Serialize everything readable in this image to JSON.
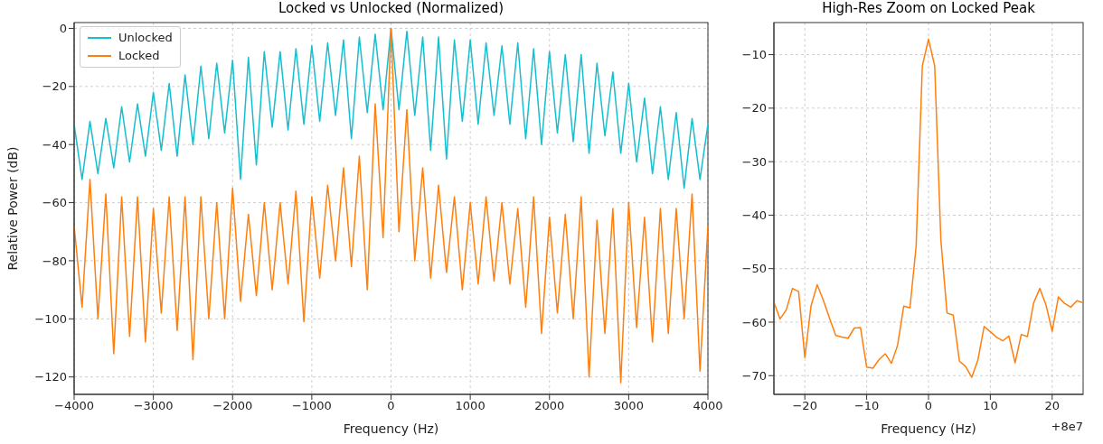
{
  "chart_data": [
    {
      "type": "line",
      "title": "Locked vs Unlocked (Normalized)",
      "xlabel": "Frequency (Hz)",
      "ylabel": "Relative Power (dB)",
      "x": [
        -4000,
        -3900,
        -3800,
        -3700,
        -3600,
        -3500,
        -3400,
        -3300,
        -3200,
        -3100,
        -3000,
        -2900,
        -2800,
        -2700,
        -2600,
        -2500,
        -2400,
        -2300,
        -2200,
        -2100,
        -2000,
        -1900,
        -1800,
        -1700,
        -1600,
        -1500,
        -1400,
        -1300,
        -1200,
        -1100,
        -1000,
        -900,
        -800,
        -700,
        -600,
        -500,
        -400,
        -300,
        -200,
        -100,
        0,
        100,
        200,
        300,
        400,
        500,
        600,
        700,
        800,
        900,
        1000,
        1100,
        1200,
        1300,
        1400,
        1500,
        1600,
        1700,
        1800,
        1900,
        2000,
        2100,
        2200,
        2300,
        2400,
        2500,
        2600,
        2700,
        2800,
        2900,
        3000,
        3100,
        3200,
        3300,
        3400,
        3500,
        3600,
        3700,
        3800,
        3900,
        4000
      ],
      "series": [
        {
          "name": "Unlocked",
          "color": "#17becf",
          "values": [
            -33,
            -52,
            -32,
            -50,
            -31,
            -48,
            -27,
            -46,
            -26,
            -44,
            -22,
            -42,
            -19,
            -44,
            -16,
            -40,
            -13,
            -38,
            -12,
            -36,
            -11,
            -52,
            -10,
            -47,
            -8,
            -34,
            -8,
            -35,
            -7,
            -33,
            -6,
            -32,
            -5,
            -30,
            -4,
            -38,
            -3,
            -29,
            -2,
            -28,
            0,
            -28,
            -1,
            -30,
            -3,
            -42,
            -3,
            -45,
            -4,
            -32,
            -4,
            -33,
            -5,
            -30,
            -6,
            -33,
            -5,
            -38,
            -7,
            -40,
            -8,
            -36,
            -9,
            -39,
            -9,
            -43,
            -12,
            -37,
            -15,
            -43,
            -19,
            -46,
            -24,
            -50,
            -27,
            -52,
            -29,
            -55,
            -31,
            -52,
            -33
          ]
        },
        {
          "name": "Locked",
          "color": "#ff7f0e",
          "values": [
            -68,
            -96,
            -52,
            -100,
            -57,
            -112,
            -58,
            -106,
            -58,
            -108,
            -62,
            -98,
            -58,
            -104,
            -58,
            -114,
            -58,
            -100,
            -60,
            -100,
            -55,
            -94,
            -64,
            -92,
            -60,
            -90,
            -60,
            -88,
            -56,
            -101,
            -58,
            -86,
            -54,
            -80,
            -48,
            -82,
            -44,
            -90,
            -26,
            -72,
            0,
            -70,
            -28,
            -80,
            -48,
            -86,
            -54,
            -84,
            -58,
            -90,
            -60,
            -88,
            -58,
            -87,
            -60,
            -88,
            -62,
            -96,
            -58,
            -105,
            -65,
            -98,
            -64,
            -100,
            -58,
            -120,
            -66,
            -105,
            -62,
            -122,
            -60,
            -103,
            -65,
            -108,
            -62,
            -105,
            -62,
            -100,
            -57,
            -118,
            -68
          ]
        }
      ],
      "xlim": [
        -4000,
        4000
      ],
      "xticks": [
        -4000,
        -3000,
        -2000,
        -1000,
        0,
        1000,
        2000,
        3000,
        4000
      ],
      "ylim": [
        -126,
        2
      ],
      "yticks": [
        -120,
        -100,
        -80,
        -60,
        -40,
        -20,
        0
      ],
      "grid": true,
      "legend": "top left",
      "marker": "none",
      "line_style": "solid"
    },
    {
      "type": "line",
      "title": "High-Res Zoom on Locked Peak",
      "xlabel": "Frequency (Hz)",
      "annotations": [
        "+8e7"
      ],
      "x": [
        -25,
        -24,
        -23,
        -22,
        -21,
        -20,
        -19,
        -18,
        -17,
        -16,
        -15,
        -14,
        -13,
        -12,
        -11,
        -10,
        -9,
        -8,
        -7,
        -6,
        -5,
        -4,
        -3,
        -2,
        -1,
        0,
        1,
        2,
        3,
        4,
        5,
        6,
        7,
        8,
        9,
        10,
        11,
        12,
        13,
        14,
        15,
        16,
        17,
        18,
        19,
        20,
        21,
        22,
        23,
        24,
        25
      ],
      "series": [
        {
          "color": "#ff7f0e",
          "values": [
            -56.3,
            -59.4,
            -57.7,
            -53.7,
            -54.3,
            -66.6,
            -57.0,
            -53.0,
            -55.9,
            -59.3,
            -62.5,
            -62.8,
            -63.0,
            -61.1,
            -61.0,
            -68.4,
            -68.6,
            -67.0,
            -65.9,
            -67.7,
            -64.3,
            -57.0,
            -57.3,
            -45.8,
            -12.1,
            -7.1,
            -12.1,
            -44.7,
            -58.3,
            -58.7,
            -67.3,
            -68.3,
            -70.3,
            -67.0,
            -60.8,
            -61.8,
            -62.8,
            -63.5,
            -62.6,
            -67.6,
            -62.3,
            -62.7,
            -56.4,
            -53.7,
            -56.8,
            -61.7,
            -55.3,
            -56.5,
            -57.2,
            -56.0,
            -56.4
          ]
        }
      ],
      "xlim": [
        -25,
        25
      ],
      "xticks": [
        -20,
        -10,
        0,
        10,
        20
      ],
      "ylim": [
        -73.5,
        -4
      ],
      "yticks": [
        -70,
        -60,
        -50,
        -40,
        -30,
        -20,
        -10
      ],
      "grid": true,
      "marker": "none",
      "line_style": "solid"
    }
  ]
}
